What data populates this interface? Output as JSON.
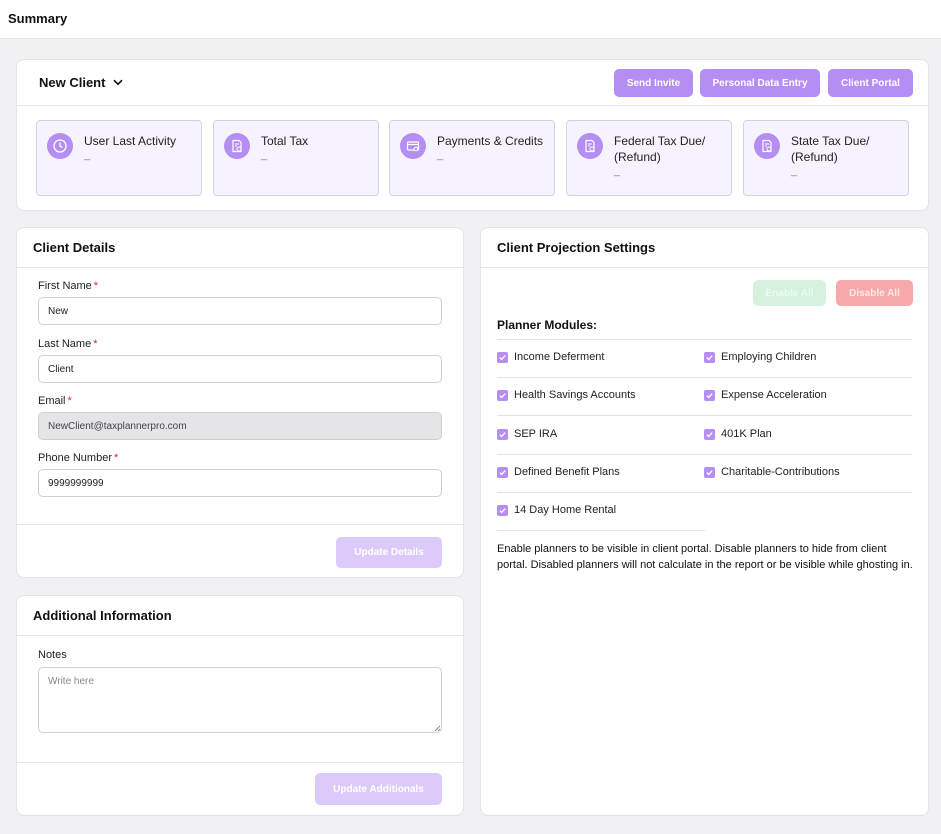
{
  "page": {
    "title": "Summary"
  },
  "header": {
    "client_name": "New Client",
    "buttons": {
      "send_invite": "Send Invite",
      "personal_data_entry": "Personal Data Entry",
      "client_portal": "Client Portal"
    },
    "stats": [
      {
        "label": "User Last Activity",
        "value": "_",
        "icon": "clock-icon"
      },
      {
        "label": "Total Tax",
        "value": "_",
        "icon": "tax-document-icon"
      },
      {
        "label": "Payments & Credits",
        "value": "_",
        "icon": "payment-card-icon"
      },
      {
        "label": "Federal Tax Due/ (Refund)",
        "value": "_",
        "icon": "tax-document-icon"
      },
      {
        "label": "State Tax Due/ (Refund)",
        "value": "_",
        "icon": "tax-document-icon"
      }
    ]
  },
  "client_details": {
    "title": "Client Details",
    "first_name_label": "First Name",
    "first_name_value": "New",
    "last_name_label": "Last Name",
    "last_name_value": "Client",
    "email_label": "Email",
    "email_value": "NewClient@taxplannerpro.com",
    "phone_label": "Phone Number",
    "phone_value": "9999999999",
    "required_mark": "*",
    "update_button": "Update Details"
  },
  "additional_info": {
    "title": "Additional Information",
    "notes_label": "Notes",
    "notes_placeholder": "Write here",
    "update_button": "Update Additionals"
  },
  "projection_settings": {
    "title": "Client Projection Settings",
    "enable_all": "Enable All",
    "disable_all": "Disable All",
    "modules_title": "Planner Modules:",
    "modules": [
      {
        "label": "Income Deferment",
        "checked": true
      },
      {
        "label": "Employing Children",
        "checked": true
      },
      {
        "label": "Health Savings Accounts",
        "checked": true
      },
      {
        "label": "Expense Acceleration",
        "checked": true
      },
      {
        "label": "SEP IRA",
        "checked": true
      },
      {
        "label": "401K Plan",
        "checked": true
      },
      {
        "label": "Defined Benefit Plans",
        "checked": true
      },
      {
        "label": "Charitable-Contributions",
        "checked": true
      },
      {
        "label": "14 Day Home Rental",
        "checked": true
      }
    ],
    "note": "Enable planners to be visible in client portal. Disable planners to hide from client portal. Disabled planners will not calculate in the report or be visible while ghosting in."
  },
  "colors": {
    "accent": "#b48ef2",
    "accent_light": "#dccbfa",
    "stat_bg": "#f6f2fe",
    "required": "#d9262c",
    "enable_bg": "#d5f3dc",
    "disable_bg": "#f5a9a9"
  }
}
